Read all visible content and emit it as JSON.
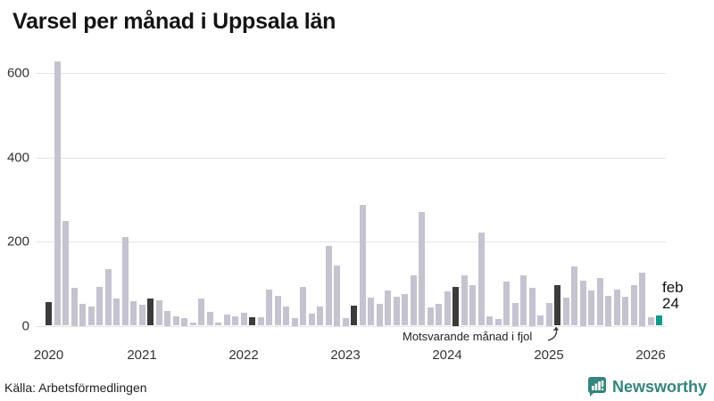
{
  "title": "Varsel per månad i Uppsala län",
  "footer": {
    "source_label": "Källa: Arbetsförmedlingen"
  },
  "logo": {
    "brand_name": "Newsworthy",
    "icon": "newsworthy-chart-bubble-icon"
  },
  "chart_data": {
    "type": "bar",
    "title": "Varsel per månad i Uppsala län",
    "xlabel": "",
    "ylabel": "",
    "ylim": [
      0,
      650
    ],
    "yticks": [
      0,
      200,
      400,
      600
    ],
    "grid": "horizontal",
    "year_ticks": [
      "2020",
      "2021",
      "2022",
      "2023",
      "2024",
      "2025",
      "2026"
    ],
    "annotation": {
      "text": "Motsvarande månad i fjol",
      "points_to": "2025-02"
    },
    "current_label": {
      "line1": "feb",
      "line2": "24"
    },
    "colors": {
      "bar": "#c4c3cf",
      "highlight_bar": "#3b3b3b",
      "current_bar": "#149a8d",
      "gridline": "#e4e4ea",
      "text": "#333333",
      "brand_teal": "#35857c"
    },
    "series": [
      {
        "m": "2020-02",
        "v": 57,
        "k": "h"
      },
      {
        "m": "2020-03",
        "v": 628
      },
      {
        "m": "2020-04",
        "v": 248
      },
      {
        "m": "2020-05",
        "v": 90
      },
      {
        "m": "2020-06",
        "v": 53
      },
      {
        "m": "2020-07",
        "v": 46
      },
      {
        "m": "2020-08",
        "v": 93
      },
      {
        "m": "2020-09",
        "v": 135
      },
      {
        "m": "2020-10",
        "v": 65
      },
      {
        "m": "2020-11",
        "v": 210
      },
      {
        "m": "2020-12",
        "v": 59
      },
      {
        "m": "2021-01",
        "v": 50
      },
      {
        "m": "2021-02",
        "v": 65,
        "k": "h"
      },
      {
        "m": "2021-03",
        "v": 61
      },
      {
        "m": "2021-04",
        "v": 36
      },
      {
        "m": "2021-05",
        "v": 23
      },
      {
        "m": "2021-06",
        "v": 19
      },
      {
        "m": "2021-07",
        "v": 8
      },
      {
        "m": "2021-08",
        "v": 65
      },
      {
        "m": "2021-09",
        "v": 32
      },
      {
        "m": "2021-10",
        "v": 8
      },
      {
        "m": "2021-11",
        "v": 27
      },
      {
        "m": "2021-12",
        "v": 23
      },
      {
        "m": "2022-01",
        "v": 31
      },
      {
        "m": "2022-02",
        "v": 21,
        "k": "h"
      },
      {
        "m": "2022-03",
        "v": 21
      },
      {
        "m": "2022-04",
        "v": 85
      },
      {
        "m": "2022-05",
        "v": 70
      },
      {
        "m": "2022-06",
        "v": 46
      },
      {
        "m": "2022-07",
        "v": 19
      },
      {
        "m": "2022-08",
        "v": 93
      },
      {
        "m": "2022-09",
        "v": 29
      },
      {
        "m": "2022-10",
        "v": 46
      },
      {
        "m": "2022-11",
        "v": 190
      },
      {
        "m": "2022-12",
        "v": 144
      },
      {
        "m": "2023-01",
        "v": 18
      },
      {
        "m": "2023-02",
        "v": 47,
        "k": "h"
      },
      {
        "m": "2023-03",
        "v": 286
      },
      {
        "m": "2023-04",
        "v": 67
      },
      {
        "m": "2023-05",
        "v": 53
      },
      {
        "m": "2023-06",
        "v": 84
      },
      {
        "m": "2023-07",
        "v": 69
      },
      {
        "m": "2023-08",
        "v": 76
      },
      {
        "m": "2023-09",
        "v": 120
      },
      {
        "m": "2023-10",
        "v": 270
      },
      {
        "m": "2023-11",
        "v": 44
      },
      {
        "m": "2023-12",
        "v": 51
      },
      {
        "m": "2024-01",
        "v": 82
      },
      {
        "m": "2024-02",
        "v": 92,
        "k": "h"
      },
      {
        "m": "2024-03",
        "v": 120
      },
      {
        "m": "2024-04",
        "v": 97
      },
      {
        "m": "2024-05",
        "v": 222
      },
      {
        "m": "2024-06",
        "v": 22
      },
      {
        "m": "2024-07",
        "v": 15
      },
      {
        "m": "2024-08",
        "v": 104
      },
      {
        "m": "2024-09",
        "v": 55
      },
      {
        "m": "2024-10",
        "v": 120
      },
      {
        "m": "2024-11",
        "v": 90
      },
      {
        "m": "2024-12",
        "v": 25
      },
      {
        "m": "2025-01",
        "v": 55
      },
      {
        "m": "2025-02",
        "v": 96,
        "k": "h"
      },
      {
        "m": "2025-03",
        "v": 67
      },
      {
        "m": "2025-04",
        "v": 140
      },
      {
        "m": "2025-05",
        "v": 108
      },
      {
        "m": "2025-06",
        "v": 83
      },
      {
        "m": "2025-07",
        "v": 113
      },
      {
        "m": "2025-08",
        "v": 72
      },
      {
        "m": "2025-09",
        "v": 85
      },
      {
        "m": "2025-10",
        "v": 69
      },
      {
        "m": "2025-11",
        "v": 96
      },
      {
        "m": "2025-12",
        "v": 127
      },
      {
        "m": "2026-01",
        "v": 21
      },
      {
        "m": "2026-02",
        "v": 24,
        "k": "c"
      }
    ]
  }
}
